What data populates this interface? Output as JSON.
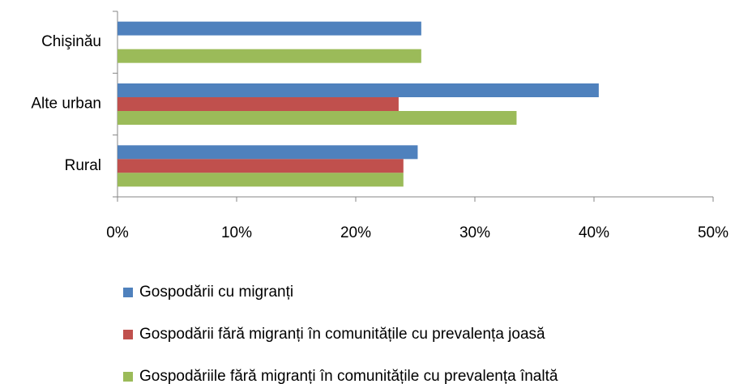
{
  "chart_data": {
    "type": "barh",
    "categories": [
      "Chişinău",
      "Alte urban",
      "Rural"
    ],
    "series": [
      {
        "name": "Gospodării cu migranți",
        "color": "#4f81bd",
        "values": [
          25.5,
          40.4,
          25.2
        ]
      },
      {
        "name": "Gospodării fără migranți în comunitățile cu prevalența joasă",
        "color": "#c0504d",
        "values": [
          null,
          23.6,
          24
        ]
      },
      {
        "name": "Gospodăriile fără migranți în comunitățile cu prevalența înaltă",
        "color": "#9bbb59",
        "values": [
          25.5,
          33.5,
          24
        ]
      }
    ],
    "xlim": [
      0,
      50
    ],
    "xticks": [
      {
        "value": 0,
        "label": "0%"
      },
      {
        "value": 10,
        "label": "10%"
      },
      {
        "value": 20,
        "label": "20%"
      },
      {
        "value": 30,
        "label": "30%"
      },
      {
        "value": 40,
        "label": "40%"
      },
      {
        "value": 50,
        "label": "50%"
      }
    ],
    "legend": "bottom"
  }
}
